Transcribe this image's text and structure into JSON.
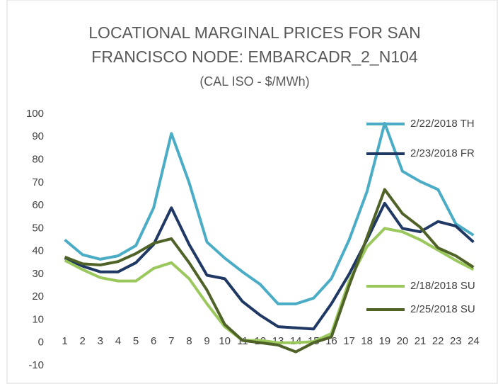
{
  "chart_data": {
    "type": "line",
    "title": [
      "LOCATIONAL MARGINAL PRICES FOR SAN",
      "FRANCISCO NODE: EMBARCADR_2_N104"
    ],
    "subtitle": "(CAL ISO - $/MWh)",
    "categories": [
      "1",
      "2",
      "3",
      "4",
      "5",
      "6",
      "7",
      "8",
      "9",
      "10",
      "11",
      "12",
      "13",
      "14",
      "15",
      "16",
      "17",
      "18",
      "19",
      "20",
      "21",
      "22",
      "23",
      "24"
    ],
    "series": [
      {
        "name": "2/22/2018 TH",
        "color": "#4bacc6",
        "values": [
          45,
          38.5,
          36.5,
          38,
          42.5,
          59,
          91.5,
          70,
          44,
          37,
          31,
          25.5,
          17,
          17,
          19.5,
          28,
          45,
          66,
          96,
          75,
          70.5,
          67,
          52,
          47
        ]
      },
      {
        "name": "2/23/2018 FR",
        "color": "#1f3864",
        "values": [
          37,
          33.5,
          31,
          31,
          35,
          43,
          59,
          43,
          29.5,
          28,
          18,
          12,
          7,
          6.5,
          6,
          17,
          30,
          45,
          61,
          50,
          48.5,
          53,
          51,
          44
        ]
      },
      {
        "name": "2/18/2018 SU",
        "color": "#9bc85c",
        "values": [
          36,
          32,
          28.5,
          27,
          27,
          32.5,
          35,
          28,
          17,
          7,
          1,
          1,
          0,
          0,
          0.5,
          4,
          27,
          42,
          50,
          48.5,
          45,
          40.5,
          36,
          32
        ]
      },
      {
        "name": "2/25/2018 SU",
        "color": "#4f6228",
        "values": [
          37.5,
          34.5,
          34,
          35.5,
          39,
          43.5,
          45.5,
          35,
          23,
          8,
          1,
          0,
          -1,
          -4,
          0,
          2.5,
          25,
          46,
          67,
          56.5,
          50.5,
          41.5,
          38,
          33
        ]
      }
    ],
    "ylim": [
      -10,
      100
    ],
    "yticks": [
      -10,
      0,
      10,
      20,
      30,
      40,
      50,
      60,
      70,
      80,
      90,
      100
    ],
    "grid": false
  }
}
